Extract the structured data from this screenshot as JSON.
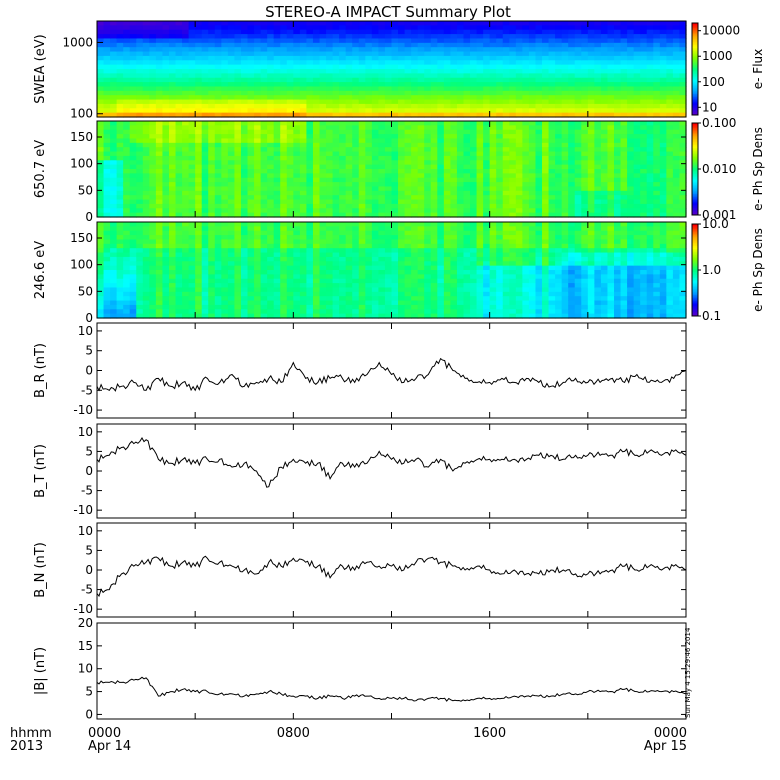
{
  "title": "STEREO-A IMPACT Summary Plot",
  "time_axis": {
    "row_label_1": "hhmm",
    "row_label_2": "2013",
    "ticks": [
      {
        "hour": 0,
        "time": "0000",
        "date": "Apr 14"
      },
      {
        "hour": 8,
        "time": "0800",
        "date": ""
      },
      {
        "hour": 16,
        "time": "1600",
        "date": ""
      },
      {
        "hour": 24,
        "time": "0000",
        "date": "Apr 15"
      }
    ],
    "range_hours": [
      0,
      24
    ]
  },
  "timestamp": "Sun May  4 15:29:46 2014",
  "colors": {
    "rainbow": [
      "#5a00c8",
      "#0000ff",
      "#00a0ff",
      "#00ffff",
      "#00ff80",
      "#80ff00",
      "#ffff00",
      "#ffa000",
      "#ff0000"
    ]
  },
  "chart_data": [
    {
      "id": "swea",
      "type": "heatmap",
      "ylabel": "SWEA (eV)",
      "yscale": "log",
      "ylim": [
        90,
        2000
      ],
      "yticks": [
        "100",
        "1000"
      ],
      "colorbar": {
        "label": "e- Flux",
        "scale": "log",
        "ticks": [
          "10",
          "100",
          "1000",
          "10000"
        ],
        "range": [
          5,
          20000
        ]
      },
      "note": "Flux decreases with energy; highest flux near 100 eV, lowest near 2000 eV"
    },
    {
      "id": "pad650",
      "type": "heatmap",
      "ylabel": "650.7 eV",
      "ylim": [
        0,
        180
      ],
      "yticks": [
        "0",
        "50",
        "100",
        "150"
      ],
      "colorbar": {
        "label": "e- Ph Sp Dens",
        "scale": "log",
        "ticks": [
          "0.001",
          "0.010",
          "0.100"
        ],
        "range": [
          0.001,
          0.1
        ]
      }
    },
    {
      "id": "pad246",
      "type": "heatmap",
      "ylabel": "246.6 eV",
      "ylim": [
        0,
        180
      ],
      "yticks": [
        "0",
        "50",
        "100",
        "150"
      ],
      "colorbar": {
        "label": "e- Ph Sp Dens",
        "scale": "log",
        "ticks": [
          "0.1",
          "1.0",
          "10.0"
        ],
        "range": [
          0.1,
          10
        ]
      }
    },
    {
      "id": "br",
      "type": "line",
      "ylabel": "B_R (nT)",
      "ylim": [
        -12,
        12
      ],
      "yticks": [
        "-10",
        "-5",
        "0",
        "5",
        "10"
      ],
      "x": [
        0,
        0.5,
        1,
        1.5,
        2,
        2.5,
        3,
        3.5,
        4,
        4.5,
        5,
        5.5,
        6,
        6.5,
        7,
        7.5,
        8,
        8.5,
        9,
        9.5,
        10,
        10.5,
        11,
        11.5,
        12,
        12.5,
        13,
        13.5,
        14,
        14.5,
        15,
        15.5,
        16,
        16.5,
        17,
        17.5,
        18,
        18.5,
        19,
        19.5,
        20,
        20.5,
        21,
        21.5,
        22,
        22.5,
        23,
        23.5,
        24
      ],
      "y": [
        -4,
        -5,
        -4,
        -3,
        -5,
        -2,
        -4,
        -3,
        -5,
        -2,
        -3,
        -1,
        -4,
        -3,
        -2,
        -3,
        2,
        -2,
        -3,
        -2,
        -2,
        -3,
        -1,
        2,
        -1,
        -3,
        -2,
        -1,
        3,
        0,
        -2,
        -3,
        -3,
        -2,
        -3,
        -2,
        -3,
        -4,
        -3,
        -2,
        -3,
        -3,
        -2,
        -3,
        -1,
        -3,
        -3,
        -2,
        0
      ]
    },
    {
      "id": "bt",
      "type": "line",
      "ylabel": "B_T (nT)",
      "ylim": [
        -12,
        12
      ],
      "yticks": [
        "-10",
        "-5",
        "0",
        "5",
        "10"
      ],
      "x": [
        0,
        0.5,
        1,
        1.5,
        2,
        2.5,
        3,
        3.5,
        4,
        4.5,
        5,
        5.5,
        6,
        6.5,
        7,
        7.5,
        8,
        8.5,
        9,
        9.5,
        10,
        10.5,
        11,
        11.5,
        12,
        12.5,
        13,
        13.5,
        14,
        14.5,
        15,
        15.5,
        16,
        16.5,
        17,
        17.5,
        18,
        18.5,
        19,
        19.5,
        20,
        20.5,
        21,
        21.5,
        22,
        22.5,
        23,
        23.5,
        24
      ],
      "y": [
        3,
        4,
        6,
        7,
        8,
        3,
        2,
        3,
        2,
        3,
        3,
        1,
        2,
        0,
        -4,
        1,
        3,
        2,
        2,
        -2,
        2,
        1,
        2,
        5,
        3,
        2,
        3,
        1,
        3,
        0,
        2,
        3,
        3,
        3,
        3,
        3,
        4,
        4,
        3,
        4,
        4,
        4,
        4,
        5,
        4,
        5,
        4,
        5,
        4
      ]
    },
    {
      "id": "bn",
      "type": "line",
      "ylabel": "B_N (nT)",
      "ylim": [
        -12,
        12
      ],
      "yticks": [
        "-10",
        "-5",
        "0",
        "5",
        "10"
      ],
      "x": [
        0,
        0.5,
        1,
        1.5,
        2,
        2.5,
        3,
        3.5,
        4,
        4.5,
        5,
        5.5,
        6,
        6.5,
        7,
        7.5,
        8,
        8.5,
        9,
        9.5,
        10,
        10.5,
        11,
        11.5,
        12,
        12.5,
        13,
        13.5,
        14,
        14.5,
        15,
        15.5,
        16,
        16.5,
        17,
        17.5,
        18,
        18.5,
        19,
        19.5,
        20,
        20.5,
        21,
        21.5,
        22,
        22.5,
        23,
        23.5,
        24
      ],
      "y": [
        -6,
        -5,
        -1,
        1,
        2,
        3,
        1,
        2,
        1,
        3,
        2,
        1,
        0,
        -1,
        2,
        1,
        3,
        2,
        1,
        -2,
        1,
        0,
        2,
        1,
        1,
        0,
        2,
        3,
        2,
        1,
        0,
        1,
        0,
        -1,
        0,
        -1,
        -1,
        0,
        0,
        -1,
        -1,
        -1,
        0,
        1,
        0,
        1,
        0,
        1,
        0
      ]
    },
    {
      "id": "bmag",
      "type": "line",
      "ylabel": "|B| (nT)",
      "ylim": [
        -1,
        20
      ],
      "yticks": [
        "0",
        "5",
        "10",
        "15",
        "20"
      ],
      "x": [
        0,
        0.5,
        1,
        1.5,
        2,
        2.5,
        3,
        3.5,
        4,
        4.5,
        5,
        5.5,
        6,
        6.5,
        7,
        7.5,
        8,
        8.5,
        9,
        9.5,
        10,
        10.5,
        11,
        11.5,
        12,
        12.5,
        13,
        13.5,
        14,
        14.5,
        15,
        15.5,
        16,
        16.5,
        17,
        17.5,
        18,
        18.5,
        19,
        19.5,
        20,
        20.5,
        21,
        21.5,
        22,
        22.5,
        23,
        23.5,
        24
      ],
      "y": [
        7,
        7,
        7,
        7.5,
        8,
        4,
        5,
        5.5,
        5,
        5,
        4.5,
        4.5,
        4,
        4.5,
        5,
        4.5,
        4,
        4,
        3.5,
        4,
        3.5,
        4,
        4,
        3.5,
        3.5,
        3.5,
        3,
        3.5,
        3.5,
        3,
        3,
        3.5,
        3.5,
        3.5,
        4,
        4,
        4,
        4,
        4.5,
        4.5,
        5,
        5,
        5,
        5.5,
        5,
        5,
        5,
        5,
        4.5
      ]
    }
  ]
}
